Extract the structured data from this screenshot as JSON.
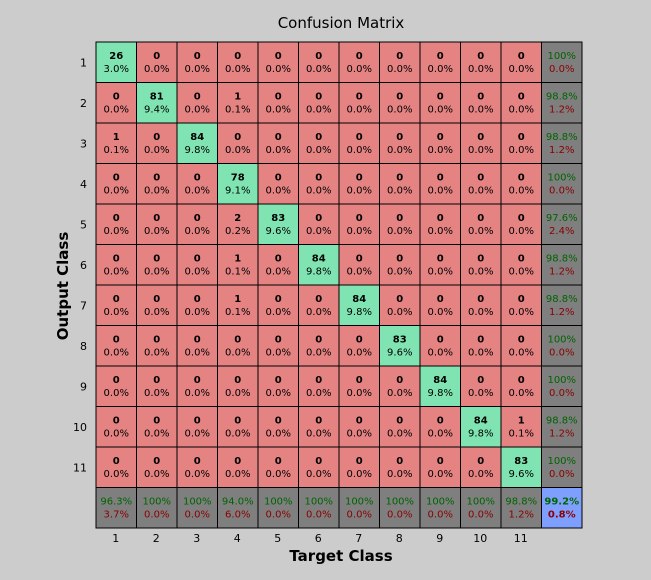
{
  "chart_data": {
    "type": "heatmap",
    "title": "Confusion Matrix",
    "xlabel": "Target Class",
    "ylabel": "Output Class",
    "classes": [
      "1",
      "2",
      "3",
      "4",
      "5",
      "6",
      "7",
      "8",
      "9",
      "10",
      "11"
    ],
    "counts": [
      [
        26,
        0,
        0,
        0,
        0,
        0,
        0,
        0,
        0,
        0,
        0
      ],
      [
        0,
        81,
        0,
        1,
        0,
        0,
        0,
        0,
        0,
        0,
        0
      ],
      [
        1,
        0,
        84,
        0,
        0,
        0,
        0,
        0,
        0,
        0,
        0
      ],
      [
        0,
        0,
        0,
        78,
        0,
        0,
        0,
        0,
        0,
        0,
        0
      ],
      [
        0,
        0,
        0,
        2,
        83,
        0,
        0,
        0,
        0,
        0,
        0
      ],
      [
        0,
        0,
        0,
        1,
        0,
        84,
        0,
        0,
        0,
        0,
        0
      ],
      [
        0,
        0,
        0,
        1,
        0,
        0,
        84,
        0,
        0,
        0,
        0
      ],
      [
        0,
        0,
        0,
        0,
        0,
        0,
        0,
        83,
        0,
        0,
        0
      ],
      [
        0,
        0,
        0,
        0,
        0,
        0,
        0,
        0,
        84,
        0,
        0
      ],
      [
        0,
        0,
        0,
        0,
        0,
        0,
        0,
        0,
        0,
        84,
        1
      ],
      [
        0,
        0,
        0,
        0,
        0,
        0,
        0,
        0,
        0,
        0,
        83
      ]
    ],
    "percents": [
      [
        "3.0%",
        "0.0%",
        "0.0%",
        "0.0%",
        "0.0%",
        "0.0%",
        "0.0%",
        "0.0%",
        "0.0%",
        "0.0%",
        "0.0%"
      ],
      [
        "0.0%",
        "9.4%",
        "0.0%",
        "0.1%",
        "0.0%",
        "0.0%",
        "0.0%",
        "0.0%",
        "0.0%",
        "0.0%",
        "0.0%"
      ],
      [
        "0.1%",
        "0.0%",
        "9.8%",
        "0.0%",
        "0.0%",
        "0.0%",
        "0.0%",
        "0.0%",
        "0.0%",
        "0.0%",
        "0.0%"
      ],
      [
        "0.0%",
        "0.0%",
        "0.0%",
        "9.1%",
        "0.0%",
        "0.0%",
        "0.0%",
        "0.0%",
        "0.0%",
        "0.0%",
        "0.0%"
      ],
      [
        "0.0%",
        "0.0%",
        "0.0%",
        "0.2%",
        "9.6%",
        "0.0%",
        "0.0%",
        "0.0%",
        "0.0%",
        "0.0%",
        "0.0%"
      ],
      [
        "0.0%",
        "0.0%",
        "0.0%",
        "0.1%",
        "0.0%",
        "9.8%",
        "0.0%",
        "0.0%",
        "0.0%",
        "0.0%",
        "0.0%"
      ],
      [
        "0.0%",
        "0.0%",
        "0.0%",
        "0.1%",
        "0.0%",
        "0.0%",
        "9.8%",
        "0.0%",
        "0.0%",
        "0.0%",
        "0.0%"
      ],
      [
        "0.0%",
        "0.0%",
        "0.0%",
        "0.0%",
        "0.0%",
        "0.0%",
        "0.0%",
        "9.6%",
        "0.0%",
        "0.0%",
        "0.0%"
      ],
      [
        "0.0%",
        "0.0%",
        "0.0%",
        "0.0%",
        "0.0%",
        "0.0%",
        "0.0%",
        "0.0%",
        "9.8%",
        "0.0%",
        "0.0%"
      ],
      [
        "0.0%",
        "0.0%",
        "0.0%",
        "0.0%",
        "0.0%",
        "0.0%",
        "0.0%",
        "0.0%",
        "0.0%",
        "9.8%",
        "0.1%"
      ],
      [
        "0.0%",
        "0.0%",
        "0.0%",
        "0.0%",
        "0.0%",
        "0.0%",
        "0.0%",
        "0.0%",
        "0.0%",
        "0.0%",
        "9.6%"
      ]
    ],
    "row_summary": [
      [
        "100%",
        "0.0%"
      ],
      [
        "98.8%",
        "1.2%"
      ],
      [
        "98.8%",
        "1.2%"
      ],
      [
        "100%",
        "0.0%"
      ],
      [
        "97.6%",
        "2.4%"
      ],
      [
        "98.8%",
        "1.2%"
      ],
      [
        "98.8%",
        "1.2%"
      ],
      [
        "100%",
        "0.0%"
      ],
      [
        "100%",
        "0.0%"
      ],
      [
        "98.8%",
        "1.2%"
      ],
      [
        "100%",
        "0.0%"
      ]
    ],
    "col_summary": [
      [
        "96.3%",
        "3.7%"
      ],
      [
        "100%",
        "0.0%"
      ],
      [
        "100%",
        "0.0%"
      ],
      [
        "94.0%",
        "6.0%"
      ],
      [
        "100%",
        "0.0%"
      ],
      [
        "100%",
        "0.0%"
      ],
      [
        "100%",
        "0.0%"
      ],
      [
        "100%",
        "0.0%"
      ],
      [
        "100%",
        "0.0%"
      ],
      [
        "100%",
        "0.0%"
      ],
      [
        "98.8%",
        "1.2%"
      ]
    ],
    "total": [
      "99.2%",
      "0.8%"
    ],
    "colors": {
      "background": "#cccccc",
      "correct": "#7fe4b1",
      "incorrect": "#e58383",
      "summary": "#7f7f7f",
      "total": "#7f9ffe",
      "good_text": "#006400",
      "bad_text": "#8b0000"
    }
  }
}
